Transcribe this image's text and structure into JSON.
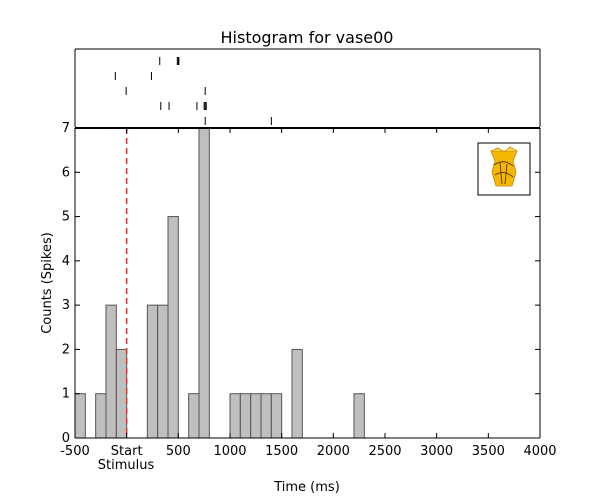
{
  "chart_data": {
    "type": "bar",
    "title": "Histogram for vase00",
    "xlabel": "Time (ms)",
    "ylabel": "Counts (Spikes)",
    "xlim": [
      -500,
      4000
    ],
    "ylim": [
      0,
      7
    ],
    "x_ticks": [
      -500,
      0,
      500,
      1000,
      1500,
      2000,
      2500,
      3000,
      3500,
      4000
    ],
    "x_tick_labels": [
      "-500",
      "Start",
      "500",
      "1000",
      "1500",
      "2000",
      "2500",
      "3000",
      "3500",
      "4000"
    ],
    "stimulus_label": "Stimulus",
    "y_ticks": [
      0,
      1,
      2,
      3,
      4,
      5,
      6,
      7
    ],
    "grid": false,
    "bin_width_ms": 100,
    "bins": [
      {
        "x0": -500,
        "x1": -400,
        "count": 1
      },
      {
        "x0": -400,
        "x1": -300,
        "count": 0
      },
      {
        "x0": -300,
        "x1": -200,
        "count": 1
      },
      {
        "x0": -200,
        "x1": -100,
        "count": 3
      },
      {
        "x0": -100,
        "x1": 0,
        "count": 2
      },
      {
        "x0": 0,
        "x1": 100,
        "count": 0
      },
      {
        "x0": 100,
        "x1": 200,
        "count": 0
      },
      {
        "x0": 200,
        "x1": 300,
        "count": 3
      },
      {
        "x0": 300,
        "x1": 400,
        "count": 3
      },
      {
        "x0": 400,
        "x1": 500,
        "count": 5
      },
      {
        "x0": 500,
        "x1": 600,
        "count": 0
      },
      {
        "x0": 600,
        "x1": 700,
        "count": 1
      },
      {
        "x0": 700,
        "x1": 800,
        "count": 7
      },
      {
        "x0": 800,
        "x1": 900,
        "count": 0
      },
      {
        "x0": 900,
        "x1": 1000,
        "count": 0
      },
      {
        "x0": 1000,
        "x1": 1100,
        "count": 1
      },
      {
        "x0": 1100,
        "x1": 1200,
        "count": 1
      },
      {
        "x0": 1200,
        "x1": 1300,
        "count": 1
      },
      {
        "x0": 1300,
        "x1": 1400,
        "count": 1
      },
      {
        "x0": 1400,
        "x1": 1500,
        "count": 1
      },
      {
        "x0": 1500,
        "x1": 1600,
        "count": 0
      },
      {
        "x0": 1600,
        "x1": 1700,
        "count": 2
      },
      {
        "x0": 1700,
        "x1": 1800,
        "count": 0
      },
      {
        "x0": 1800,
        "x1": 1900,
        "count": 0
      },
      {
        "x0": 1900,
        "x1": 2000,
        "count": 0
      },
      {
        "x0": 2000,
        "x1": 2100,
        "count": 0
      },
      {
        "x0": 2100,
        "x1": 2200,
        "count": 0
      },
      {
        "x0": 2200,
        "x1": 2300,
        "count": 1
      },
      {
        "x0": 2300,
        "x1": 4000,
        "count": 0
      }
    ],
    "stimulus_onset_ms": 0,
    "raster_trials": [
      [
        320,
        490,
        500,
        505
      ],
      [
        -110,
        240
      ],
      [
        -5,
        760
      ],
      [
        330,
        410,
        680,
        750,
        760,
        770
      ],
      [
        760,
        1400
      ]
    ],
    "colors": {
      "bar_fill": "#bfbfbf",
      "bar_edge": "#555555",
      "stimulus_line": "#e03030",
      "axes": "#000000",
      "stimulus_icon": "#f5b800"
    },
    "stimulus_icon": "vase-thumbnail"
  }
}
